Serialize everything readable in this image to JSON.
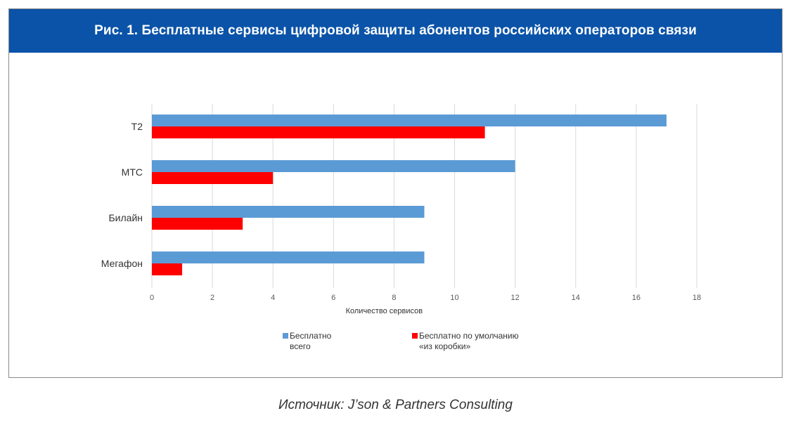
{
  "header": {
    "title": "Рис. 1. Бесплатные сервисы цифровой защиты абонентов российских операторов связи"
  },
  "source": "Источник: J’son & Partners Consulting",
  "colors": {
    "header_bg": "#0a53a8",
    "series_total": "#5b9bd5",
    "series_default": "#ff0000"
  },
  "chart_data": {
    "type": "bar",
    "orientation": "horizontal",
    "categories": [
      "Т2",
      "МТС",
      "Билайн",
      "Мегафон"
    ],
    "series": [
      {
        "name": [
          "Бесплатно",
          "всего"
        ],
        "values": [
          17,
          12,
          9,
          9
        ],
        "color": "#5b9bd5"
      },
      {
        "name": [
          "Бесплатно  по умолчанию",
          "«из коробки»"
        ],
        "values": [
          11,
          4,
          3,
          1
        ],
        "color": "#ff0000"
      }
    ],
    "xlabel": "Количество  сервисов",
    "ylabel": "",
    "xlim": [
      0,
      18
    ],
    "xticks": [
      "0",
      "2",
      "4",
      "6",
      "8",
      "10",
      "12",
      "14",
      "16",
      "18"
    ],
    "grid": true,
    "legend_position": "bottom"
  }
}
